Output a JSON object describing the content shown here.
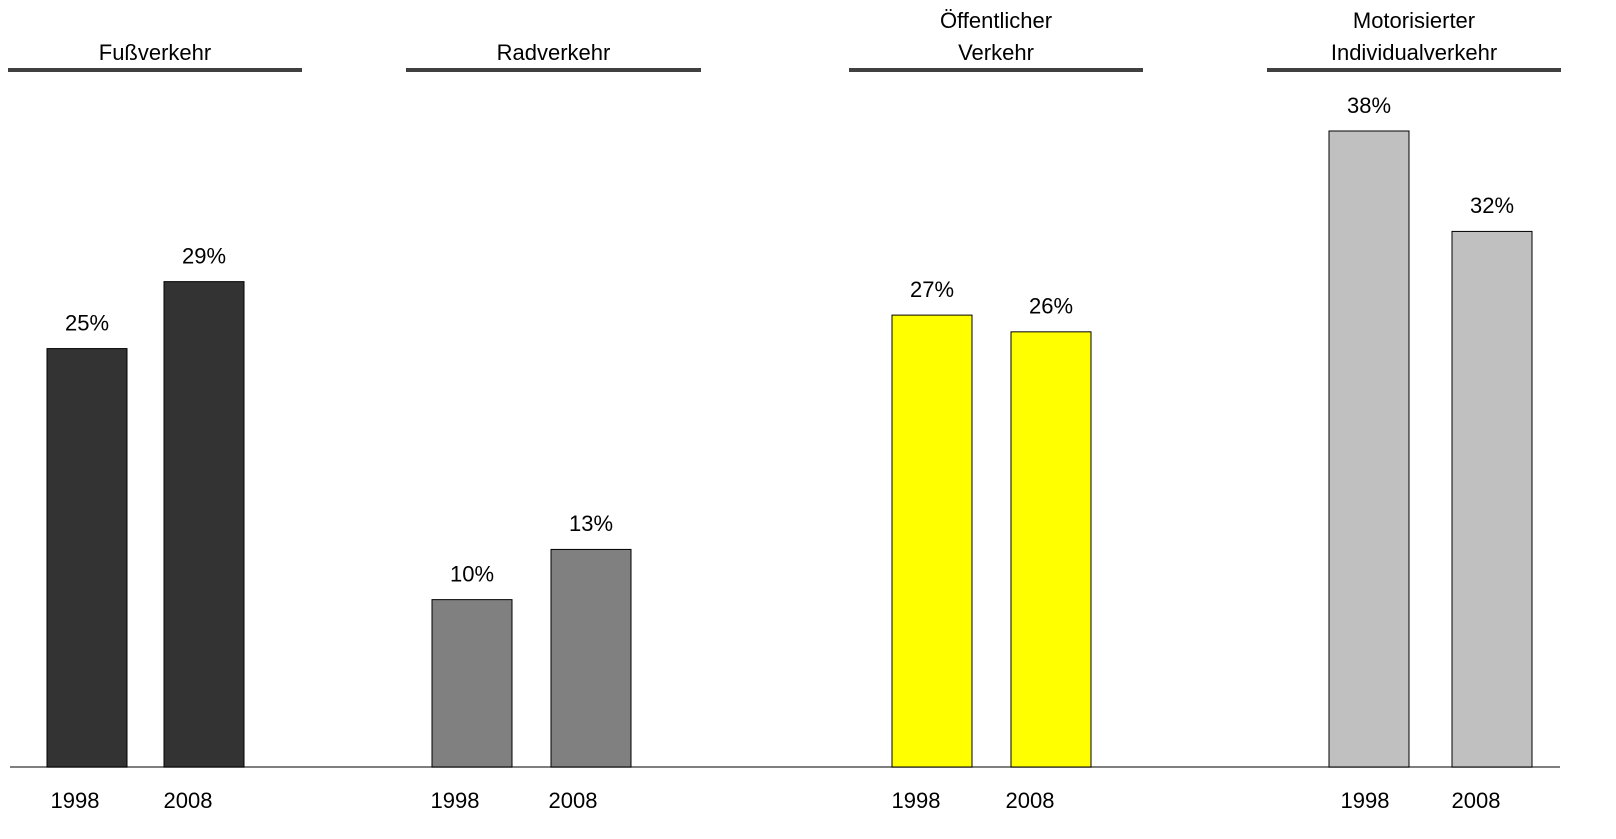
{
  "chart_data": {
    "type": "bar",
    "groups": [
      {
        "name": [
          "Fußverkehr"
        ],
        "color": "#333333",
        "categories": [
          "1998",
          "2008"
        ],
        "values": [
          25,
          29
        ],
        "value_labels": [
          "25%",
          "29%"
        ]
      },
      {
        "name": [
          "Radverkehr"
        ],
        "color": "#808080",
        "categories": [
          "1998",
          "2008"
        ],
        "values": [
          10,
          13
        ],
        "value_labels": [
          "10%",
          "13%"
        ]
      },
      {
        "name": [
          "Öffentlicher",
          "Verkehr"
        ],
        "color": "#ffff00",
        "categories": [
          "1998",
          "2008"
        ],
        "values": [
          27,
          26
        ],
        "value_labels": [
          "27%",
          "26%"
        ]
      },
      {
        "name": [
          "Motorisierter",
          "Individualverkehr"
        ],
        "color": "#c0c0c0",
        "categories": [
          "1998",
          "2008"
        ],
        "values": [
          38,
          32
        ],
        "value_labels": [
          "38%",
          "32%"
        ]
      }
    ]
  }
}
